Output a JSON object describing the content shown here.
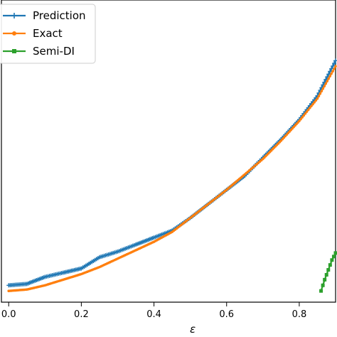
{
  "chart_data": {
    "type": "line",
    "title": "",
    "xlabel": "ε",
    "ylabel": "",
    "xlim": [
      -0.02,
      0.9
    ],
    "ylim": [
      0,
      1
    ],
    "grid": false,
    "legend_position": "upper-left",
    "x_ticks": [
      "0.0",
      "0.2",
      "0.4",
      "0.6",
      "0.8"
    ],
    "x_tick_values": [
      0.0,
      0.2,
      0.4,
      0.6,
      0.8
    ],
    "series": [
      {
        "name": "Prediction",
        "color": "#1f77b4",
        "marker": "plus",
        "x": [
          0.0,
          0.05,
          0.1,
          0.15,
          0.2,
          0.25,
          0.3,
          0.35,
          0.4,
          0.45,
          0.5,
          0.55,
          0.6,
          0.65,
          0.7,
          0.75,
          0.8,
          0.85,
          0.9
        ],
        "y": [
          0.06,
          0.065,
          0.09,
          0.105,
          0.12,
          0.16,
          0.18,
          0.205,
          0.23,
          0.255,
          0.3,
          0.35,
          0.4,
          0.45,
          0.515,
          0.58,
          0.65,
          0.735,
          0.86
        ]
      },
      {
        "name": "Exact",
        "color": "#ff7f0e",
        "marker": "dot",
        "x": [
          0.0,
          0.05,
          0.1,
          0.15,
          0.2,
          0.25,
          0.3,
          0.35,
          0.4,
          0.45,
          0.5,
          0.55,
          0.6,
          0.65,
          0.7,
          0.75,
          0.8,
          0.85,
          0.9
        ],
        "y": [
          0.04,
          0.045,
          0.06,
          0.08,
          0.1,
          0.125,
          0.155,
          0.185,
          0.215,
          0.25,
          0.3,
          0.35,
          0.4,
          0.455,
          0.51,
          0.575,
          0.645,
          0.725,
          0.84
        ]
      },
      {
        "name": "Semi-DI",
        "color": "#2ca02c",
        "marker": "square",
        "x": [
          0.86,
          0.87,
          0.88,
          0.89,
          0.9
        ],
        "y": [
          0.04,
          0.08,
          0.115,
          0.15,
          0.175
        ]
      }
    ]
  }
}
